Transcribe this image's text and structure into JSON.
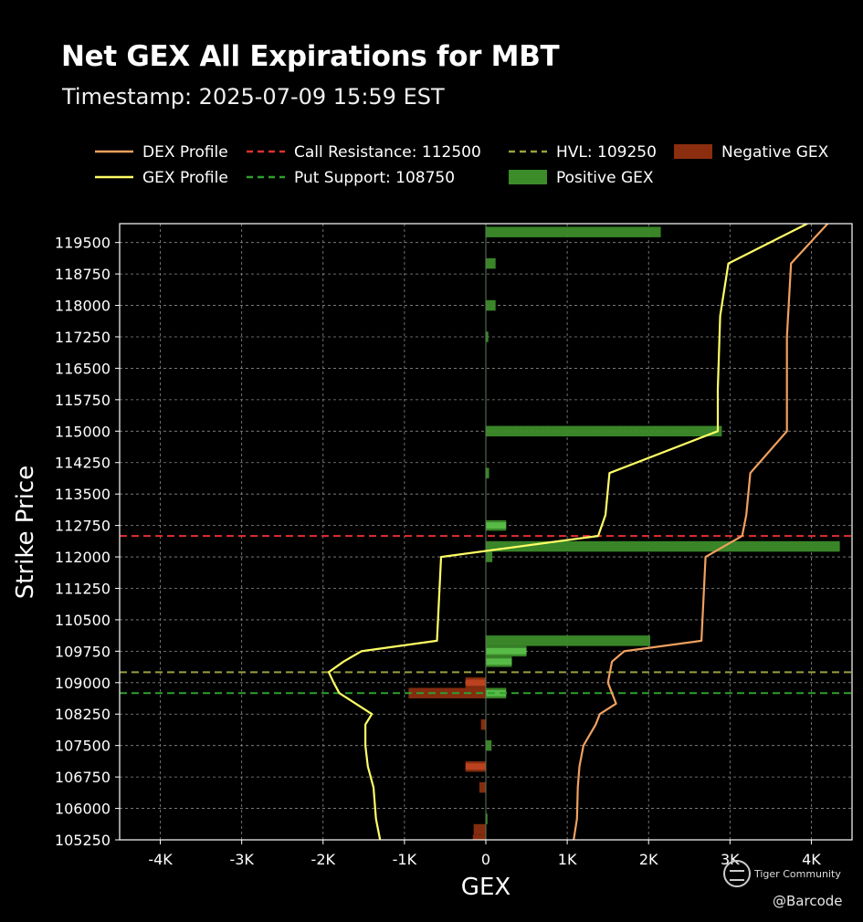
{
  "header": {
    "title": "Net GEX All Expirations for MBT",
    "subtitle": "Timestamp: 2025-07-09 15:59 EST"
  },
  "watermark": {
    "brand": "Tiger Community",
    "handle": "@Barcode",
    "icon": "tiger-community-logo"
  },
  "colors": {
    "background": "#000000",
    "dex": "#f0a060",
    "gex": "#ffff66",
    "call_resistance": "#e03030",
    "put_support": "#2ea02e",
    "hvl": "#9aa040",
    "negative": "#8b2e10",
    "positive": "#3c8c2a",
    "bar_highlight_positive": "#6cde5a",
    "bar_highlight_negative": "#e0502a"
  },
  "chart_data": {
    "type": "bar",
    "orientation": "horizontal",
    "xlabel": "GEX",
    "ylabel": "Strike Price",
    "xlim": [
      -4500,
      4500
    ],
    "ylim": [
      105250,
      119950
    ],
    "x_ticks": [
      -4000,
      -3000,
      -2000,
      -1000,
      0,
      1000,
      2000,
      3000,
      4000
    ],
    "x_tick_labels": [
      "-4K",
      "-3K",
      "-2K",
      "-1K",
      "0",
      "1K",
      "2K",
      "3K",
      "4K"
    ],
    "y_ticks": [
      105250,
      106000,
      106750,
      107500,
      108250,
      109000,
      109750,
      110500,
      111250,
      112000,
      112750,
      113500,
      114250,
      115000,
      115750,
      116500,
      117250,
      118000,
      118750,
      119500
    ],
    "grid": true,
    "legend_position": "top",
    "legend": [
      {
        "label": "DEX Profile",
        "kind": "line",
        "color": "#f0a060"
      },
      {
        "label": "GEX Profile",
        "kind": "line",
        "color": "#ffff66"
      },
      {
        "label": "Call Resistance: 112500",
        "kind": "dashed",
        "color": "#e03030"
      },
      {
        "label": "Put Support: 108750",
        "kind": "dashed",
        "color": "#2ea02e"
      },
      {
        "label": "HVL: 109250",
        "kind": "dashed",
        "color": "#9aa040"
      },
      {
        "label": "Positive GEX",
        "kind": "patch",
        "color": "#3c8c2a"
      },
      {
        "label": "Negative GEX",
        "kind": "patch",
        "color": "#8b2e10"
      }
    ],
    "levels": {
      "call_resistance": 112500,
      "put_support": 108750,
      "hvl": 109250
    },
    "bars": {
      "series": [
        {
          "name": "Positive GEX",
          "points": [
            {
              "strike": 119750,
              "gex": 2150
            },
            {
              "strike": 119000,
              "gex": 120
            },
            {
              "strike": 118000,
              "gex": 120
            },
            {
              "strike": 117250,
              "gex": 30
            },
            {
              "strike": 115000,
              "gex": 2900
            },
            {
              "strike": 114000,
              "gex": 40
            },
            {
              "strike": 112750,
              "gex": 250
            },
            {
              "strike": 112250,
              "gex": 4350
            },
            {
              "strike": 112000,
              "gex": 80
            },
            {
              "strike": 110000,
              "gex": 2020
            },
            {
              "strike": 109750,
              "gex": 500
            },
            {
              "strike": 109500,
              "gex": 320
            },
            {
              "strike": 108750,
              "gex": 250
            },
            {
              "strike": 107500,
              "gex": 70
            },
            {
              "strike": 105750,
              "gex": 20
            }
          ]
        },
        {
          "name": "Negative GEX",
          "points": [
            {
              "strike": 109000,
              "gex": -250
            },
            {
              "strike": 108750,
              "gex": -950
            },
            {
              "strike": 108000,
              "gex": -60
            },
            {
              "strike": 107000,
              "gex": -250
            },
            {
              "strike": 106500,
              "gex": -80
            },
            {
              "strike": 105500,
              "gex": -150
            },
            {
              "strike": 105250,
              "gex": -160
            }
          ]
        }
      ]
    },
    "lines": [
      {
        "name": "GEX Profile",
        "points": [
          [
            3950,
            119950
          ],
          [
            2980,
            119000
          ],
          [
            2880,
            117750
          ],
          [
            2850,
            116000
          ],
          [
            2850,
            115000
          ],
          [
            1520,
            114000
          ],
          [
            1470,
            113000
          ],
          [
            1380,
            112500
          ],
          [
            -550,
            112000
          ],
          [
            -600,
            110000
          ],
          [
            -1530,
            109750
          ],
          [
            -1750,
            109500
          ],
          [
            -1930,
            109250
          ],
          [
            -1870,
            109000
          ],
          [
            -1800,
            108750
          ],
          [
            -1400,
            108250
          ],
          [
            -1480,
            108000
          ],
          [
            -1480,
            107500
          ],
          [
            -1450,
            107000
          ],
          [
            -1380,
            106500
          ],
          [
            -1350,
            105750
          ],
          [
            -1300,
            105250
          ]
        ]
      },
      {
        "name": "DEX Profile",
        "points": [
          [
            4200,
            119950
          ],
          [
            3750,
            119000
          ],
          [
            3700,
            117250
          ],
          [
            3700,
            115000
          ],
          [
            3250,
            114000
          ],
          [
            3200,
            113000
          ],
          [
            3150,
            112500
          ],
          [
            2700,
            112000
          ],
          [
            2650,
            110000
          ],
          [
            1700,
            109750
          ],
          [
            1550,
            109500
          ],
          [
            1500,
            109000
          ],
          [
            1600,
            108500
          ],
          [
            1400,
            108250
          ],
          [
            1350,
            108000
          ],
          [
            1200,
            107500
          ],
          [
            1150,
            107000
          ],
          [
            1130,
            106500
          ],
          [
            1120,
            105750
          ],
          [
            1080,
            105250
          ]
        ]
      }
    ]
  }
}
